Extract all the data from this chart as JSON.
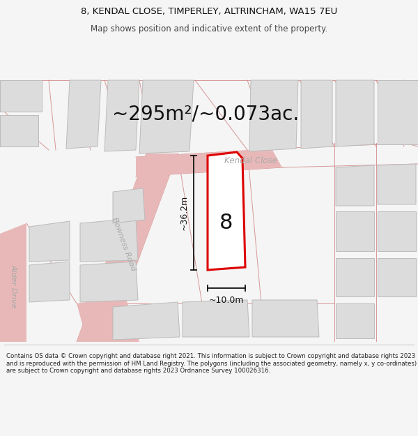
{
  "title_line1": "8, KENDAL CLOSE, TIMPERLEY, ALTRINCHAM, WA15 7EU",
  "title_line2": "Map shows position and indicative extent of the property.",
  "area_text": "~295m²/~0.073ac.",
  "dim_width": "~10.0m",
  "dim_height": "~36.2m",
  "plot_number": "8",
  "street_name": "Kendal Close",
  "road1": "Bowness Road",
  "road2": "Alder Drive",
  "footer": "Contains OS data © Crown copyright and database right 2021. This information is subject to Crown copyright and database rights 2023 and is reproduced with the permission of HM Land Registry. The polygons (including the associated geometry, namely x, y co-ordinates) are subject to Crown copyright and database rights 2023 Ordnance Survey 100026316.",
  "bg_color": "#f5f5f5",
  "map_bg": "#f0eeee",
  "plot_fill": "#ffffff",
  "plot_edge": "#dd0000",
  "road_fill": "#f5e8e8",
  "building_fill": "#dcdcdc",
  "building_edge": "#bbbbbb",
  "dim_color": "#111111",
  "street_label_color": "#aaaaaa",
  "road_label_color": "#aaaaaa",
  "separator_color": "#cccccc",
  "footer_text_color": "#222222",
  "title_color": "#111111",
  "subtitle_color": "#444444",
  "area_text_color": "#111111",
  "plot_label_color": "#111111"
}
